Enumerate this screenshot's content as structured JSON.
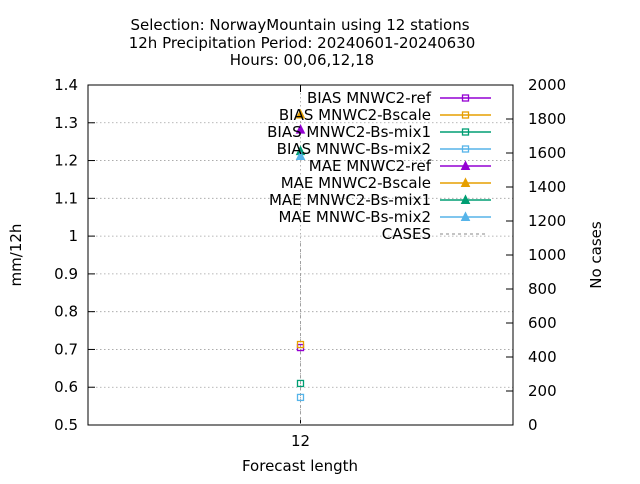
{
  "chart_data": {
    "type": "scatter",
    "title_lines": [
      "Selection: NorwayMountain using    12 stations",
      "12h Precipitation    Period: 20240601-20240630",
      "Hours: 00,06,12,18"
    ],
    "xlabel": "Forecast length",
    "ylabel": "mm/12h",
    "y2label": "No cases",
    "categories": [
      "12"
    ],
    "ylim": [
      0.5,
      1.4
    ],
    "y_ticks": [
      "0.5",
      "0.6",
      "0.7",
      "0.8",
      "0.9",
      "1",
      "1.1",
      "1.2",
      "1.3",
      "1.4"
    ],
    "y2lim": [
      0,
      2000
    ],
    "y2_ticks": [
      "0",
      "200",
      "400",
      "600",
      "800",
      "1000",
      "1200",
      "1400",
      "1600",
      "1800",
      "2000"
    ],
    "grid": true,
    "legend_placement": "top-right",
    "series": [
      {
        "name": "BIAS MNWC2-ref",
        "marker": "square",
        "color": "#9400d3",
        "values": [
          0.705
        ]
      },
      {
        "name": "BIAS MNWC2-Bscale",
        "marker": "square",
        "color": "#e69f00",
        "values": [
          0.713
        ]
      },
      {
        "name": "BIAS MNWC2-Bs-mix1",
        "marker": "square",
        "color": "#009e73",
        "values": [
          0.61
        ]
      },
      {
        "name": "BIAS MNWC-Bs-mix2",
        "marker": "square",
        "color": "#56b4e9",
        "values": [
          0.573
        ]
      },
      {
        "name": "MAE MNWC2-ref",
        "marker": "triangle",
        "color": "#9400d3",
        "values": [
          1.282
        ]
      },
      {
        "name": "MAE MNWC2-Bscale",
        "marker": "triangle",
        "color": "#e69f00",
        "values": [
          1.322
        ]
      },
      {
        "name": "MAE MNWC2-Bs-mix1",
        "marker": "triangle",
        "color": "#009e73",
        "values": [
          1.225
        ]
      },
      {
        "name": "MAE MNWC-Bs-mix2",
        "marker": "triangle",
        "color": "#56b4e9",
        "values": [
          1.212
        ]
      },
      {
        "name": "CASES",
        "marker": "dashed-line",
        "color": "#a0a0a0",
        "axis": "y2",
        "values": [
          1070
        ]
      }
    ]
  }
}
